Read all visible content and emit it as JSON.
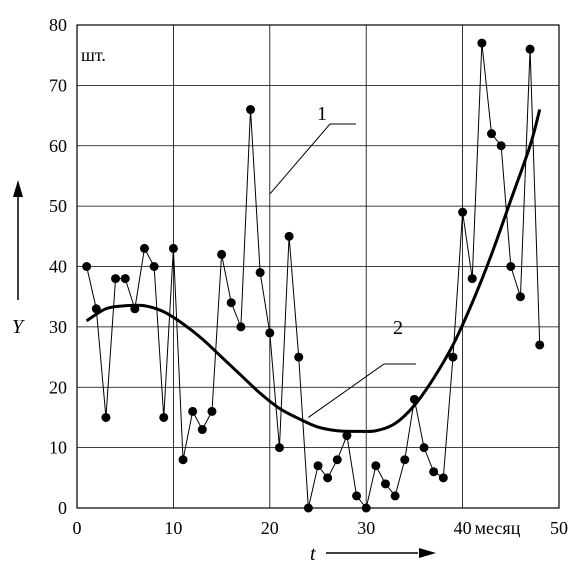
{
  "chart_data": {
    "type": "line",
    "xlabel": "t",
    "ylabel": "Y",
    "x_unit_label": "месяц",
    "y_unit_label": "шт.",
    "xlim": [
      0,
      50
    ],
    "ylim": [
      0,
      80
    ],
    "x_ticks": [
      0,
      10,
      20,
      30,
      40,
      50
    ],
    "y_ticks": [
      0,
      10,
      20,
      30,
      40,
      50,
      60,
      70,
      80
    ],
    "grid": true,
    "series": [
      {
        "name": "1",
        "style": "thin-line-with-markers",
        "color": "#000000",
        "x": [
          1,
          2,
          3,
          4,
          5,
          6,
          7,
          8,
          9,
          10,
          11,
          12,
          13,
          14,
          15,
          16,
          17,
          18,
          19,
          20,
          21,
          22,
          23,
          24,
          25,
          26,
          27,
          28,
          29,
          30,
          31,
          32,
          33,
          34,
          35,
          36,
          37,
          38,
          39,
          40,
          41,
          42,
          43,
          44,
          45,
          46,
          47,
          48
        ],
        "values": [
          40,
          33,
          15,
          38,
          38,
          33,
          43,
          40,
          15,
          43,
          8,
          16,
          13,
          16,
          42,
          34,
          30,
          66,
          39,
          29,
          10,
          45,
          25,
          0,
          7,
          5,
          8,
          12,
          2,
          0,
          7,
          4,
          2,
          8,
          18,
          10,
          6,
          5,
          25,
          49,
          38,
          77,
          62,
          60,
          40,
          35,
          76,
          27
        ]
      },
      {
        "name": "2",
        "style": "thick-smooth",
        "color": "#000000",
        "x": [
          1,
          3,
          5,
          7,
          9,
          11,
          13,
          15,
          17,
          19,
          21,
          23,
          25,
          27,
          29,
          31,
          33,
          35,
          37,
          39,
          41,
          43,
          45,
          47,
          48
        ],
        "values": [
          31,
          33,
          33.5,
          33.5,
          32.5,
          30.5,
          28,
          25,
          22,
          19,
          16.5,
          14.8,
          13.4,
          12.8,
          12.7,
          12.8,
          14,
          17,
          21.5,
          27,
          34,
          42,
          51,
          60,
          66
        ]
      }
    ],
    "annotations": [
      {
        "label": "1",
        "target_x": 20,
        "target_y": 52
      },
      {
        "label": "2",
        "target_x": 24,
        "target_y": 15
      }
    ]
  }
}
